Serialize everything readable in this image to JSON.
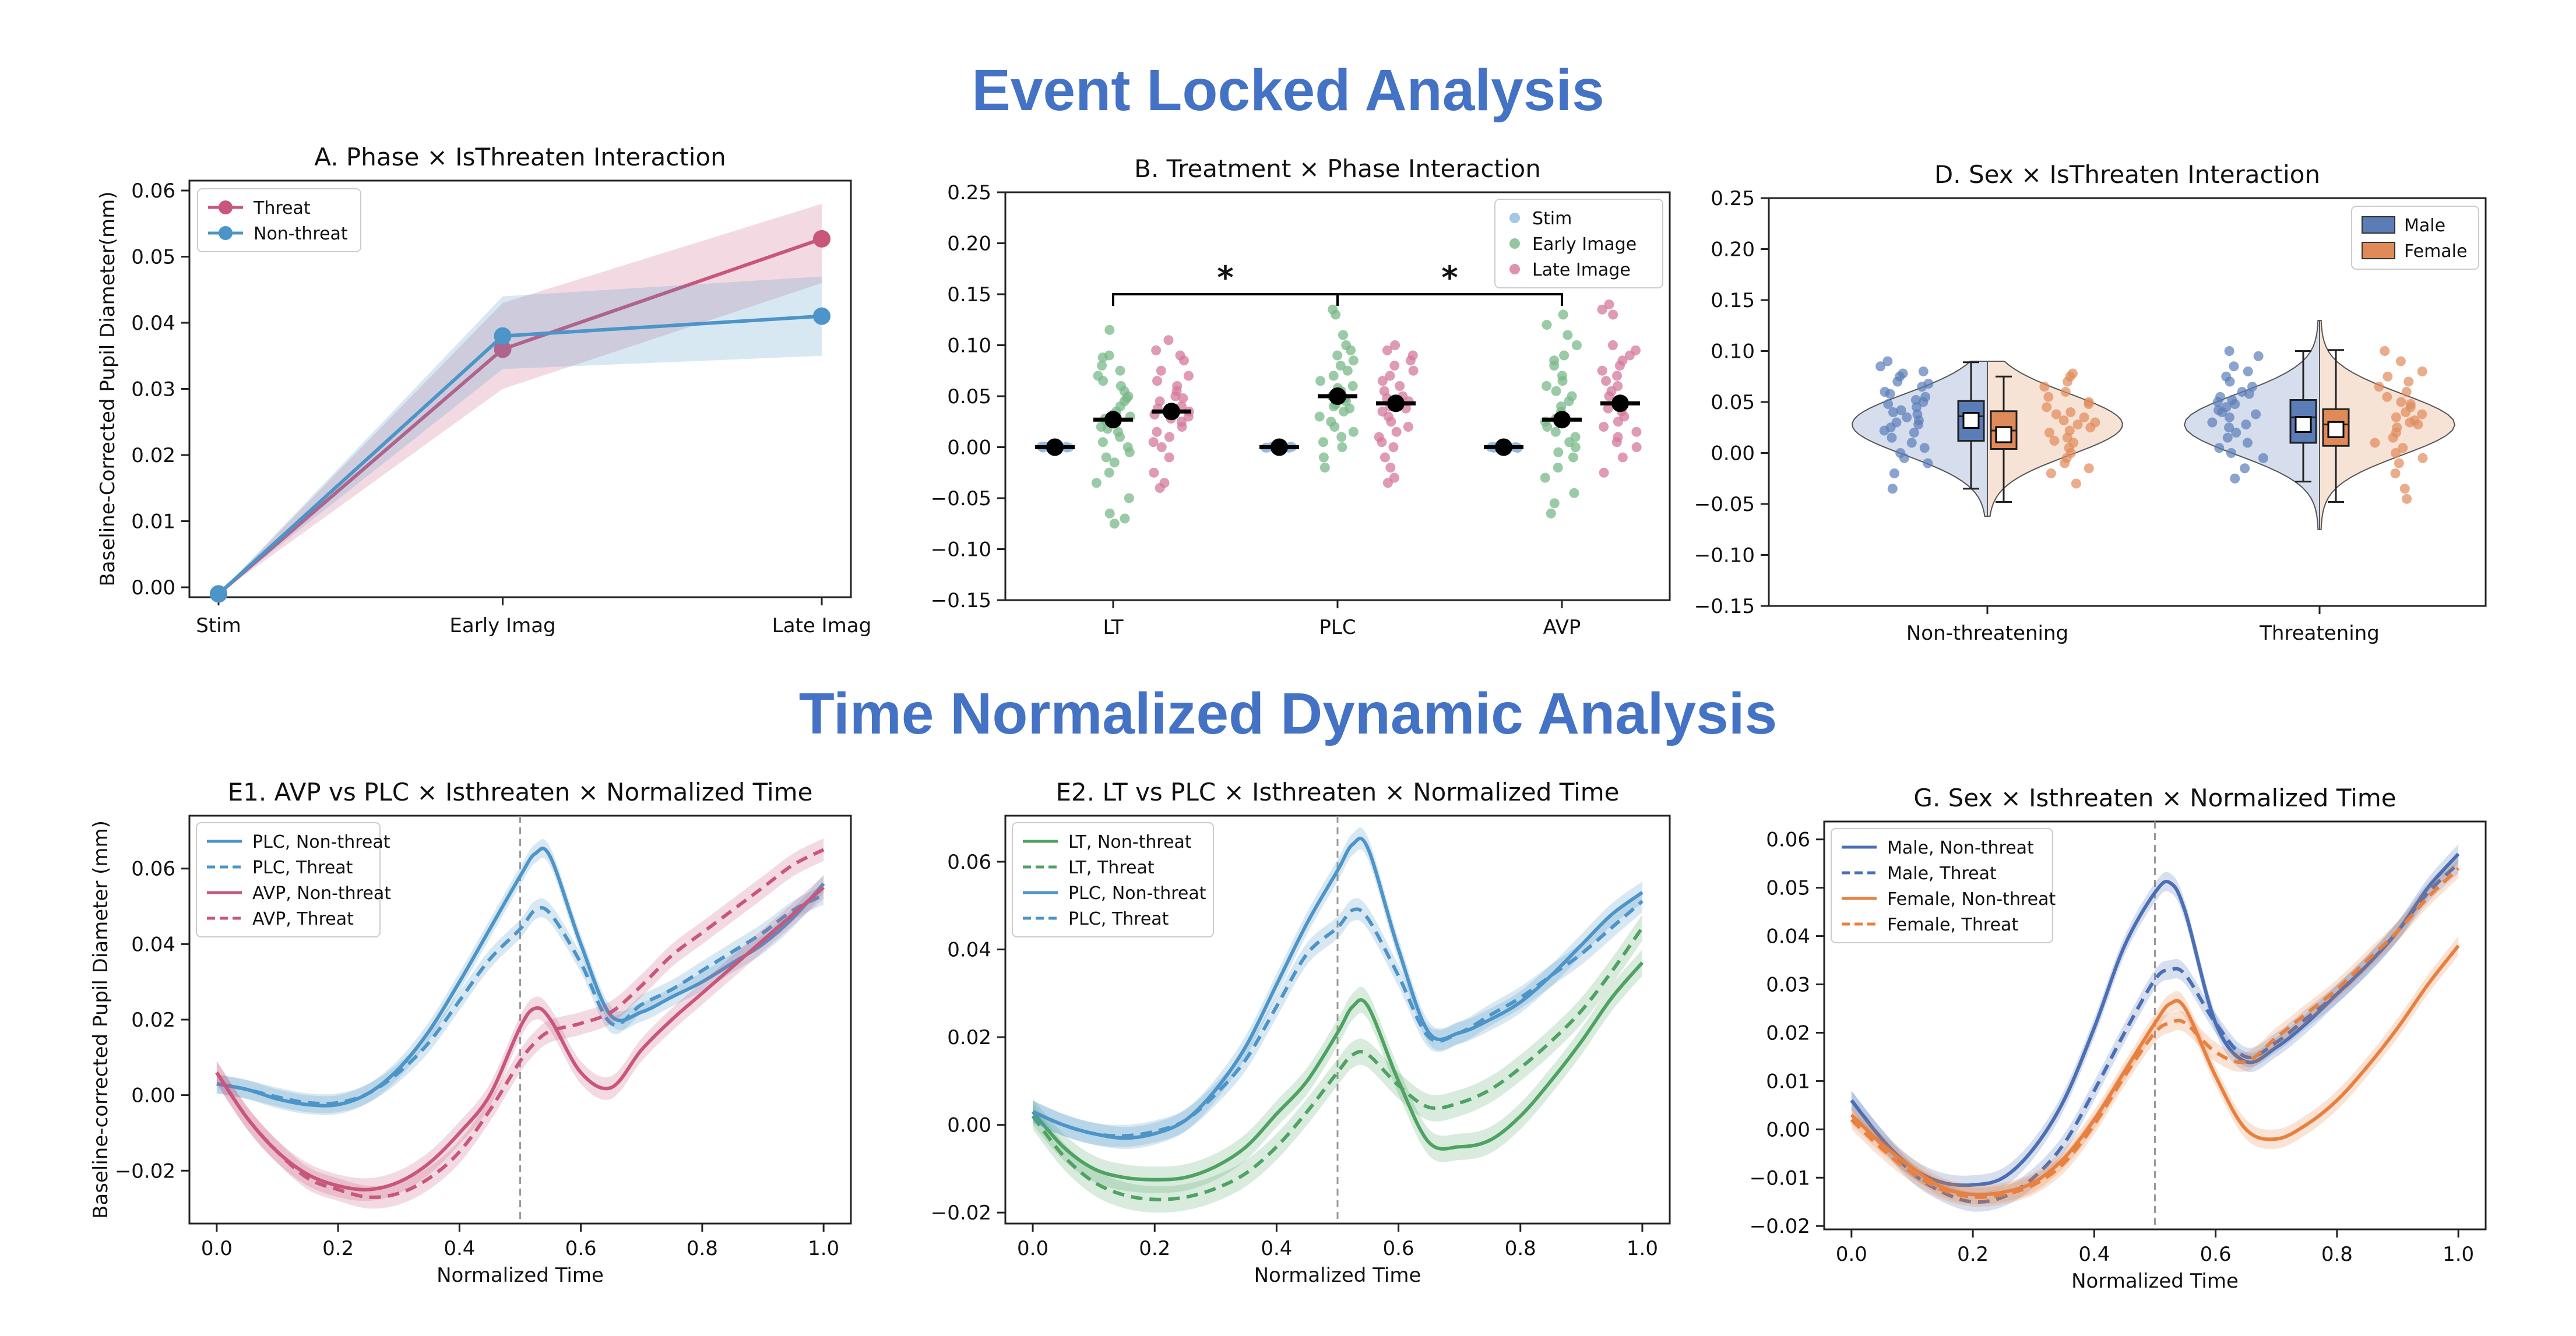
{
  "headings": {
    "event_locked": "Event Locked Analysis",
    "time_normalized": "Time Normalized Dynamic Analysis"
  },
  "colors": {
    "heading": "#4472c4",
    "threat": "#c9577a",
    "non_threat": "#4d94c8",
    "stim": "#8fb8df",
    "early_image": "#7ab88a",
    "late_image": "#d4789c",
    "male": "#5a7db8",
    "female": "#e08a5a",
    "avp": "#c9577a",
    "plc": "#4d94c8",
    "lt": "#4fa362",
    "g_male": "#4a6fb5",
    "g_female": "#e88040"
  },
  "chart_data": [
    {
      "id": "A",
      "type": "line",
      "title": "A. Phase × IsThreaten Interaction",
      "ylabel": "Baseline-Corrected Pupil Diameter(mm)",
      "xlabel": "",
      "categories": [
        "Stim",
        "Early Imag",
        "Late Imag"
      ],
      "ylim": [
        -0.0015,
        0.0615
      ],
      "yticks": [
        "0.00",
        "0.01",
        "0.02",
        "0.03",
        "0.04",
        "0.05",
        "0.06"
      ],
      "legend": "top-left",
      "series": [
        {
          "name": "Threat",
          "values": [
            -0.001,
            0.036,
            0.0527
          ],
          "lower": [
            -0.001,
            0.03,
            0.046
          ],
          "upper": [
            -0.001,
            0.043,
            0.058
          ]
        },
        {
          "name": "Non-threat",
          "values": [
            -0.001,
            0.038,
            0.041
          ],
          "lower": [
            -0.001,
            0.033,
            0.035
          ],
          "upper": [
            -0.001,
            0.044,
            0.047
          ]
        }
      ]
    },
    {
      "id": "B",
      "type": "scatter",
      "title": "B. Treatment × Phase Interaction",
      "categories": [
        "LT",
        "PLC",
        "AVP"
      ],
      "ylim": [
        -0.15,
        0.25
      ],
      "yticks": [
        "−0.15",
        "−0.10",
        "−0.05",
        "0.00",
        "0.05",
        "0.10",
        "0.15",
        "0.20",
        "0.25"
      ],
      "legend": "top-right",
      "series_names": [
        "Stim",
        "Early Image",
        "Late Image"
      ],
      "means": {
        "LT": [
          0.0,
          0.027,
          0.035
        ],
        "PLC": [
          0.0,
          0.05,
          0.043
        ],
        "AVP": [
          0.0,
          0.027,
          0.043
        ]
      },
      "significance": [
        "*",
        "*"
      ],
      "points": {
        "LT": {
          "Early Image": [
            0.115,
            0.09,
            0.088,
            0.08,
            0.075,
            0.07,
            0.065,
            0.06,
            0.055,
            0.05,
            0.048,
            0.045,
            0.04,
            0.035,
            0.032,
            0.03,
            0.028,
            0.025,
            0.02,
            0.018,
            0.015,
            0.01,
            0.005,
            0.0,
            -0.005,
            -0.01,
            -0.015,
            -0.025,
            -0.035,
            -0.05,
            -0.065,
            -0.07,
            -0.075
          ],
          "Late Image": [
            0.105,
            0.095,
            0.09,
            0.085,
            0.075,
            0.07,
            0.065,
            0.06,
            0.055,
            0.05,
            0.048,
            0.045,
            0.04,
            0.038,
            0.035,
            0.032,
            0.03,
            0.028,
            0.025,
            0.02,
            0.015,
            0.01,
            0.005,
            0.0,
            -0.01,
            -0.025,
            -0.035,
            -0.04
          ]
        },
        "PLC": {
          "Early Image": [
            0.135,
            0.13,
            0.11,
            0.1,
            0.095,
            0.09,
            0.085,
            0.08,
            0.075,
            0.07,
            0.065,
            0.06,
            0.058,
            0.055,
            0.05,
            0.048,
            0.045,
            0.042,
            0.04,
            0.038,
            0.035,
            0.03,
            0.025,
            0.02,
            0.015,
            0.01,
            0.005,
            0.0,
            -0.01,
            -0.02
          ],
          "Late Image": [
            0.1,
            0.095,
            0.09,
            0.085,
            0.08,
            0.075,
            0.07,
            0.065,
            0.06,
            0.055,
            0.05,
            0.048,
            0.045,
            0.042,
            0.04,
            0.038,
            0.035,
            0.03,
            0.025,
            0.02,
            0.015,
            0.01,
            0.005,
            0.0,
            -0.01,
            -0.02,
            -0.03,
            -0.035
          ]
        },
        "AVP": {
          "Early Image": [
            0.13,
            0.12,
            0.11,
            0.1,
            0.09,
            0.085,
            0.08,
            0.07,
            0.065,
            0.06,
            0.055,
            0.05,
            0.045,
            0.04,
            0.035,
            0.03,
            0.028,
            0.025,
            0.02,
            0.015,
            0.01,
            0.005,
            0.0,
            -0.005,
            -0.01,
            -0.02,
            -0.03,
            -0.045,
            -0.055,
            -0.065
          ],
          "Late Image": [
            0.14,
            0.135,
            0.13,
            0.1,
            0.095,
            0.09,
            0.085,
            0.08,
            0.075,
            0.07,
            0.065,
            0.06,
            0.055,
            0.05,
            0.045,
            0.04,
            0.038,
            0.035,
            0.03,
            0.025,
            0.02,
            0.015,
            0.01,
            0.005,
            0.0,
            -0.01,
            -0.025
          ]
        }
      }
    },
    {
      "id": "D",
      "type": "box",
      "title": "D. Sex × IsThreaten Interaction",
      "categories": [
        "Non-threatening",
        "Threatening"
      ],
      "ylim": [
        -0.15,
        0.25
      ],
      "yticks": [
        "−0.15",
        "−0.10",
        "−0.05",
        "0.00",
        "0.05",
        "0.10",
        "0.15",
        "0.20",
        "0.25"
      ],
      "legend": "top-right",
      "series_names": [
        "Male",
        "Female"
      ],
      "boxes": {
        "Non-threatening": {
          "Male": {
            "min": -0.035,
            "q1": 0.012,
            "median": 0.036,
            "q3": 0.051,
            "max": 0.089,
            "mean": 0.032
          },
          "Female": {
            "min": -0.048,
            "q1": 0.004,
            "median": 0.022,
            "q3": 0.041,
            "max": 0.075,
            "mean": 0.018
          }
        },
        "Threatening": {
          "Male": {
            "min": -0.028,
            "q1": 0.01,
            "median": 0.035,
            "q3": 0.052,
            "max": 0.1,
            "mean": 0.028
          },
          "Female": {
            "min": -0.048,
            "q1": 0.007,
            "median": 0.028,
            "q3": 0.043,
            "max": 0.101,
            "mean": 0.023
          }
        }
      },
      "points": {
        "Non-threatening": {
          "Male": [
            0.09,
            0.085,
            0.08,
            0.078,
            0.075,
            0.07,
            0.068,
            0.065,
            0.06,
            0.058,
            0.055,
            0.052,
            0.05,
            0.048,
            0.045,
            0.042,
            0.04,
            0.038,
            0.035,
            0.032,
            0.03,
            0.028,
            0.025,
            0.022,
            0.02,
            0.015,
            0.01,
            0.005,
            0.0,
            -0.005,
            -0.01,
            -0.02,
            -0.035
          ],
          "Female": [
            0.078,
            0.075,
            0.07,
            0.065,
            0.06,
            0.055,
            0.05,
            0.048,
            0.045,
            0.04,
            0.038,
            0.035,
            0.032,
            0.03,
            0.028,
            0.025,
            0.022,
            0.02,
            0.015,
            0.012,
            0.01,
            0.005,
            0.0,
            -0.005,
            -0.01,
            -0.015,
            -0.02,
            -0.03
          ]
        },
        "Threatening": {
          "Male": [
            0.1,
            0.095,
            0.085,
            0.08,
            0.075,
            0.07,
            0.065,
            0.06,
            0.058,
            0.055,
            0.052,
            0.05,
            0.048,
            0.045,
            0.042,
            0.04,
            0.038,
            0.035,
            0.03,
            0.028,
            0.025,
            0.02,
            0.015,
            0.01,
            0.005,
            0.0,
            -0.005,
            -0.015,
            -0.025
          ],
          "Female": [
            0.1,
            0.09,
            0.08,
            0.075,
            0.07,
            0.065,
            0.06,
            0.055,
            0.05,
            0.048,
            0.045,
            0.04,
            0.038,
            0.035,
            0.032,
            0.03,
            0.028,
            0.025,
            0.02,
            0.015,
            0.01,
            0.005,
            0.0,
            -0.005,
            -0.01,
            -0.02,
            -0.035,
            -0.045
          ]
        }
      }
    },
    {
      "id": "E1",
      "type": "line",
      "title": "E1. AVP vs PLC × Isthreaten × Normalized Time",
      "ylabel": "Baseline-corrected Pupil Diameter (mm)",
      "xlabel": "Normalized Time",
      "xlim": [
        -0.045,
        1.045
      ],
      "xticks": [
        "0.0",
        "0.2",
        "0.4",
        "0.6",
        "0.8",
        "1.0"
      ],
      "ylim": [
        -0.034,
        0.074
      ],
      "yticks": [
        "−0.02",
        "0.00",
        "0.02",
        "0.04",
        "0.06"
      ],
      "vline": 0.5,
      "legend": "top-left",
      "x": [
        0.0,
        0.05,
        0.1,
        0.15,
        0.2,
        0.25,
        0.3,
        0.35,
        0.4,
        0.45,
        0.5,
        0.525,
        0.55,
        0.6,
        0.65,
        0.7,
        0.75,
        0.8,
        0.85,
        0.9,
        0.95,
        1.0
      ],
      "series": [
        {
          "name": "PLC, Non-threat",
          "dash": false,
          "band": 0.0025,
          "values": [
            0.003,
            0.0015,
            -0.001,
            -0.0025,
            -0.0025,
            0.0005,
            0.007,
            0.017,
            0.03,
            0.044,
            0.058,
            0.064,
            0.063,
            0.04,
            0.021,
            0.022,
            0.026,
            0.03,
            0.035,
            0.04,
            0.047,
            0.056
          ]
        },
        {
          "name": "PLC, Threat",
          "dash": true,
          "band": 0.0025,
          "values": [
            0.003,
            0.0015,
            -0.0005,
            -0.002,
            -0.002,
            0.0005,
            0.006,
            0.014,
            0.025,
            0.036,
            0.044,
            0.049,
            0.048,
            0.035,
            0.019,
            0.024,
            0.028,
            0.033,
            0.038,
            0.043,
            0.049,
            0.053
          ]
        },
        {
          "name": "AVP, Non-threat",
          "dash": false,
          "band": 0.003,
          "values": [
            0.006,
            -0.006,
            -0.015,
            -0.021,
            -0.024,
            -0.025,
            -0.023,
            -0.018,
            -0.01,
            0.0,
            0.018,
            0.023,
            0.02,
            0.006,
            0.002,
            0.012,
            0.02,
            0.027,
            0.034,
            0.041,
            0.048,
            0.055
          ]
        },
        {
          "name": "AVP, Threat",
          "dash": true,
          "band": 0.003,
          "values": [
            0.006,
            -0.006,
            -0.015,
            -0.022,
            -0.025,
            -0.027,
            -0.026,
            -0.022,
            -0.015,
            -0.004,
            0.009,
            0.014,
            0.017,
            0.019,
            0.022,
            0.029,
            0.037,
            0.043,
            0.049,
            0.055,
            0.061,
            0.065
          ]
        }
      ]
    },
    {
      "id": "E2",
      "type": "line",
      "title": "E2. LT vs PLC × Isthreaten × Normalized Time",
      "ylabel": "",
      "xlabel": "Normalized Time",
      "xlim": [
        -0.045,
        1.045
      ],
      "xticks": [
        "0.0",
        "0.2",
        "0.4",
        "0.6",
        "0.8",
        "1.0"
      ],
      "ylim": [
        -0.0225,
        0.0705
      ],
      "yticks": [
        "−0.02",
        "0.00",
        "0.02",
        "0.04",
        "0.06"
      ],
      "vline": 0.5,
      "legend": "top-left",
      "x": [
        0.0,
        0.05,
        0.1,
        0.15,
        0.2,
        0.25,
        0.3,
        0.35,
        0.4,
        0.45,
        0.5,
        0.525,
        0.55,
        0.6,
        0.65,
        0.7,
        0.75,
        0.8,
        0.85,
        0.9,
        0.95,
        1.0
      ],
      "series": [
        {
          "name": "LT, Non-threat",
          "dash": false,
          "band": 0.003,
          "values": [
            0.003,
            -0.005,
            -0.01,
            -0.012,
            -0.0125,
            -0.012,
            -0.0095,
            -0.005,
            0.0025,
            0.01,
            0.021,
            0.027,
            0.027,
            0.01,
            -0.004,
            -0.005,
            -0.0035,
            0.002,
            0.01,
            0.019,
            0.029,
            0.037
          ]
        },
        {
          "name": "LT, Threat",
          "dash": true,
          "band": 0.003,
          "values": [
            0.002,
            -0.007,
            -0.013,
            -0.016,
            -0.017,
            -0.0165,
            -0.0145,
            -0.011,
            -0.005,
            0.003,
            0.012,
            0.016,
            0.016,
            0.009,
            0.004,
            0.005,
            0.008,
            0.013,
            0.019,
            0.026,
            0.035,
            0.045
          ]
        },
        {
          "name": "PLC, Non-threat",
          "dash": false,
          "band": 0.0025,
          "values": [
            0.003,
            0.0,
            -0.002,
            -0.003,
            -0.002,
            0.001,
            0.008,
            0.018,
            0.032,
            0.046,
            0.058,
            0.064,
            0.063,
            0.04,
            0.021,
            0.021,
            0.024,
            0.028,
            0.034,
            0.041,
            0.048,
            0.053
          ]
        },
        {
          "name": "PLC, Threat",
          "dash": true,
          "band": 0.0025,
          "values": [
            0.003,
            0.0,
            -0.002,
            -0.0025,
            -0.0015,
            0.001,
            0.007,
            0.015,
            0.027,
            0.039,
            0.045,
            0.049,
            0.047,
            0.034,
            0.02,
            0.021,
            0.025,
            0.029,
            0.034,
            0.039,
            0.045,
            0.051
          ]
        }
      ]
    },
    {
      "id": "G",
      "type": "line",
      "title": "G. Sex × Isthreaten × Normalized Time",
      "ylabel": "",
      "xlabel": "Normalized Time",
      "xlim": [
        -0.045,
        1.045
      ],
      "xticks": [
        "0.0",
        "0.2",
        "0.4",
        "0.6",
        "0.8",
        "1.0"
      ],
      "ylim": [
        -0.0207,
        0.0637
      ],
      "yticks": [
        "−0.02",
        "−0.01",
        "0.00",
        "0.01",
        "0.02",
        "0.03",
        "0.04",
        "0.05",
        "0.06"
      ],
      "vline": 0.5,
      "legend": "top-left",
      "x": [
        0.0,
        0.05,
        0.1,
        0.15,
        0.2,
        0.25,
        0.3,
        0.35,
        0.4,
        0.45,
        0.5,
        0.525,
        0.55,
        0.6,
        0.65,
        0.7,
        0.75,
        0.8,
        0.85,
        0.9,
        0.95,
        1.0
      ],
      "series": [
        {
          "name": "Male, Non-threat",
          "dash": false,
          "band": 0.002,
          "values": [
            0.006,
            -0.002,
            -0.008,
            -0.011,
            -0.0115,
            -0.01,
            -0.004,
            0.006,
            0.021,
            0.038,
            0.049,
            0.051,
            0.045,
            0.022,
            0.014,
            0.017,
            0.022,
            0.028,
            0.034,
            0.041,
            0.05,
            0.057
          ]
        },
        {
          "name": "Male, Threat",
          "dash": true,
          "band": 0.002,
          "values": [
            0.006,
            -0.002,
            -0.009,
            -0.013,
            -0.015,
            -0.014,
            -0.01,
            -0.003,
            0.008,
            0.02,
            0.031,
            0.033,
            0.032,
            0.022,
            0.015,
            0.018,
            0.023,
            0.028,
            0.034,
            0.041,
            0.049,
            0.055
          ]
        },
        {
          "name": "Female, Non-threat",
          "dash": false,
          "band": 0.002,
          "values": [
            0.003,
            -0.003,
            -0.008,
            -0.012,
            -0.0135,
            -0.013,
            -0.011,
            -0.006,
            0.002,
            0.012,
            0.022,
            0.026,
            0.025,
            0.011,
            0.0,
            -0.002,
            0.001,
            0.006,
            0.013,
            0.021,
            0.03,
            0.038
          ]
        },
        {
          "name": "Female, Threat",
          "dash": true,
          "band": 0.002,
          "values": [
            0.002,
            -0.004,
            -0.009,
            -0.0125,
            -0.014,
            -0.0135,
            -0.0115,
            -0.007,
            0.001,
            0.011,
            0.02,
            0.022,
            0.022,
            0.016,
            0.014,
            0.019,
            0.024,
            0.029,
            0.035,
            0.041,
            0.048,
            0.054
          ]
        }
      ]
    }
  ]
}
